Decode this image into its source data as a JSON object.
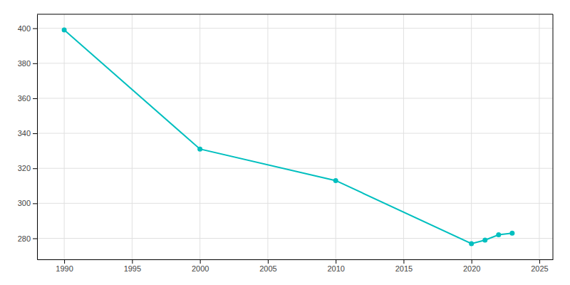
{
  "chart_data": {
    "type": "line",
    "x": [
      1990,
      2000,
      2010,
      2020,
      2021,
      2022,
      2023
    ],
    "values": [
      399,
      331,
      313,
      277,
      279,
      282,
      283
    ],
    "color": "#00BFBF",
    "marker": "circle",
    "xlim": [
      1988,
      2026
    ],
    "ylim": [
      268,
      408
    ],
    "xticks": [
      1990,
      1995,
      2000,
      2005,
      2010,
      2015,
      2020,
      2025
    ],
    "yticks": [
      280,
      300,
      320,
      340,
      360,
      380,
      400
    ],
    "grid": true
  }
}
